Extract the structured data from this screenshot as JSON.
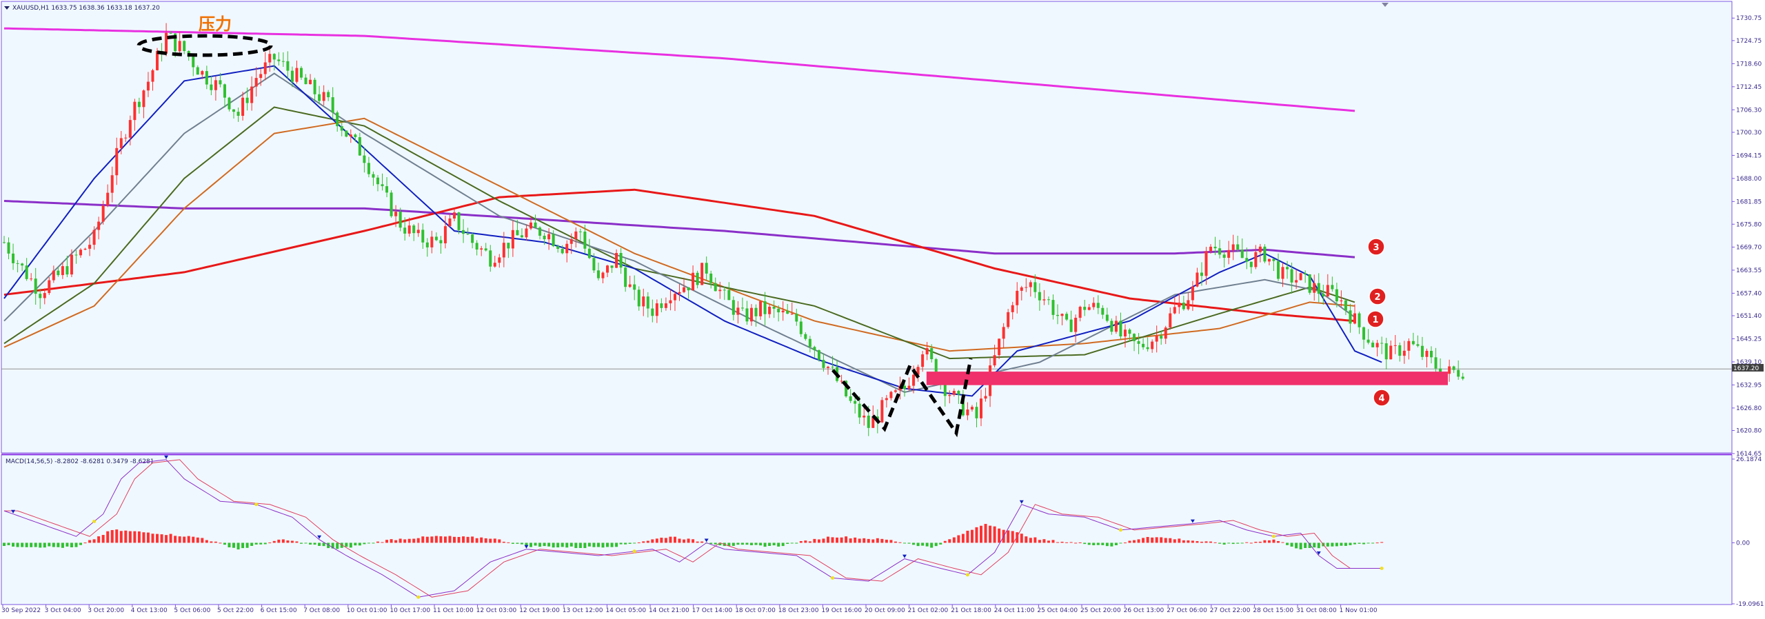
{
  "header": {
    "symbol_line": "XAUUSD,H1  1633.75 1638.36 1633.18 1637.20",
    "macd_line": "MACD(14,56,5) -8.2802 -8.6281 0.3479 -8.6281"
  },
  "annotations": {
    "pressure_label": "压力",
    "markers": [
      "1",
      "2",
      "3",
      "4"
    ]
  },
  "current_price_label": "1637.20",
  "colors": {
    "background": "#ffffff",
    "plot_bg": "#f0f8ff",
    "border": "#7a55e0",
    "magenta": "#e830e0",
    "purple": "#8a2fc8",
    "red_ma": "#e81818",
    "orange_ma": "#d06a20",
    "olive_ma": "#4a6a20",
    "gray_ma": "#708090",
    "blue_ma": "#1020c0",
    "up_candle": "#ff3030",
    "down_candle": "#30c030",
    "zone": "#f0306a",
    "badge": "#e02020"
  },
  "chart_data": [
    {
      "type": "candlestick",
      "symbol": "XAUUSD,H1",
      "y_ticks": [
        "1730.75",
        "1724.75",
        "1718.60",
        "1712.45",
        "1706.30",
        "1700.30",
        "1694.15",
        "1688.00",
        "1681.85",
        "1675.80",
        "1669.70",
        "1663.55",
        "1657.40",
        "1651.40",
        "1645.25",
        "1639.10",
        "1632.95",
        "1626.80",
        "1620.80",
        "1614.65"
      ],
      "ylim": [
        1614.65,
        1733.0
      ],
      "x_ticks": [
        "30 Sep 2022",
        "3 Oct 04:00",
        "3 Oct 20:00",
        "4 Oct 13:00",
        "5 Oct 06:00",
        "5 Oct 22:00",
        "6 Oct 15:00",
        "7 Oct 08:00",
        "10 Oct 01:00",
        "10 Oct 17:00",
        "11 Oct 10:00",
        "12 Oct 03:00",
        "12 Oct 19:00",
        "13 Oct 12:00",
        "14 Oct 05:00",
        "14 Oct 21:00",
        "17 Oct 14:00",
        "18 Oct 07:00",
        "18 Oct 23:00",
        "19 Oct 16:00",
        "20 Oct 09:00",
        "21 Oct 02:00",
        "21 Oct 18:00",
        "24 Oct 11:00",
        "25 Oct 04:00",
        "25 Oct 20:00",
        "26 Oct 13:00",
        "27 Oct 06:00",
        "27 Oct 22:00",
        "28 Oct 15:00",
        "31 Oct 08:00",
        "1 Nov 01:00"
      ],
      "current_price": 1637.2,
      "close_path": [
        [
          0,
          1671
        ],
        [
          4,
          1664
        ],
        [
          8,
          1658
        ],
        [
          12,
          1662
        ],
        [
          16,
          1667
        ],
        [
          20,
          1672
        ],
        [
          24,
          1690
        ],
        [
          28,
          1705
        ],
        [
          32,
          1714
        ],
        [
          36,
          1726
        ],
        [
          40,
          1722
        ],
        [
          44,
          1716
        ],
        [
          48,
          1712
        ],
        [
          52,
          1705
        ],
        [
          56,
          1715
        ],
        [
          60,
          1720
        ],
        [
          64,
          1716
        ],
        [
          68,
          1712
        ],
        [
          72,
          1708
        ],
        [
          76,
          1700
        ],
        [
          80,
          1694
        ],
        [
          84,
          1684
        ],
        [
          88,
          1676
        ],
        [
          92,
          1672
        ],
        [
          96,
          1671
        ],
        [
          100,
          1677
        ],
        [
          104,
          1671
        ],
        [
          108,
          1667
        ],
        [
          112,
          1671
        ],
        [
          116,
          1674
        ],
        [
          120,
          1674
        ],
        [
          124,
          1670
        ],
        [
          128,
          1674
        ],
        [
          132,
          1660
        ],
        [
          136,
          1667
        ],
        [
          140,
          1656
        ],
        [
          144,
          1653
        ],
        [
          148,
          1658
        ],
        [
          152,
          1660
        ],
        [
          156,
          1664
        ],
        [
          160,
          1656
        ],
        [
          164,
          1651
        ],
        [
          168,
          1653
        ],
        [
          172,
          1652
        ],
        [
          176,
          1650
        ],
        [
          180,
          1643
        ],
        [
          184,
          1636
        ],
        [
          188,
          1628
        ],
        [
          192,
          1622
        ],
        [
          196,
          1628
        ],
        [
          200,
          1632
        ],
        [
          204,
          1643
        ],
        [
          208,
          1634
        ],
        [
          212,
          1628
        ],
        [
          216,
          1624
        ],
        [
          220,
          1640
        ],
        [
          224,
          1656
        ],
        [
          228,
          1660
        ],
        [
          232,
          1655
        ],
        [
          236,
          1648
        ],
        [
          240,
          1654
        ],
        [
          244,
          1653
        ],
        [
          248,
          1646
        ],
        [
          252,
          1643
        ],
        [
          256,
          1646
        ],
        [
          260,
          1653
        ],
        [
          264,
          1658
        ],
        [
          268,
          1670
        ],
        [
          272,
          1669
        ],
        [
          276,
          1666
        ],
        [
          280,
          1668
        ],
        [
          284,
          1662
        ],
        [
          288,
          1661
        ],
        [
          292,
          1658
        ],
        [
          296,
          1657
        ],
        [
          300,
          1650
        ],
        [
          304,
          1644
        ],
        [
          308,
          1641
        ],
        [
          312,
          1644
        ],
        [
          316,
          1640
        ],
        [
          320,
          1636
        ],
        [
          324,
          1637
        ]
      ],
      "moving_averages": [
        {
          "color": "magenta",
          "path": [
            [
              0,
              1728
            ],
            [
              80,
              1726
            ],
            [
              160,
              1720
            ],
            [
              240,
              1712
            ],
            [
              300,
              1706
            ]
          ]
        },
        {
          "color": "purple",
          "path": [
            [
              0,
              1682
            ],
            [
              40,
              1680
            ],
            [
              80,
              1680
            ],
            [
              120,
              1677
            ],
            [
              160,
              1674
            ],
            [
              200,
              1670
            ],
            [
              220,
              1668
            ],
            [
              260,
              1668
            ],
            [
              280,
              1669
            ],
            [
              300,
              1667
            ]
          ]
        },
        {
          "color": "red_ma",
          "path": [
            [
              0,
              1657
            ],
            [
              40,
              1663
            ],
            [
              80,
              1674
            ],
            [
              110,
              1683
            ],
            [
              140,
              1685
            ],
            [
              180,
              1678
            ],
            [
              220,
              1664
            ],
            [
              250,
              1656
            ],
            [
              280,
              1652
            ],
            [
              300,
              1650
            ]
          ]
        },
        {
          "color": "orange_ma",
          "path": [
            [
              0,
              1643
            ],
            [
              20,
              1654
            ],
            [
              40,
              1680
            ],
            [
              60,
              1700
            ],
            [
              80,
              1704
            ],
            [
              110,
              1686
            ],
            [
              140,
              1668
            ],
            [
              180,
              1650
            ],
            [
              210,
              1642
            ],
            [
              240,
              1644
            ],
            [
              270,
              1648
            ],
            [
              290,
              1655
            ],
            [
              300,
              1654
            ]
          ]
        },
        {
          "color": "olive_ma",
          "path": [
            [
              0,
              1644
            ],
            [
              20,
              1660
            ],
            [
              40,
              1688
            ],
            [
              60,
              1707
            ],
            [
              80,
              1702
            ],
            [
              110,
              1682
            ],
            [
              140,
              1664
            ],
            [
              180,
              1654
            ],
            [
              210,
              1640
            ],
            [
              240,
              1641
            ],
            [
              270,
              1652
            ],
            [
              290,
              1659
            ],
            [
              300,
              1655
            ]
          ]
        },
        {
          "color": "gray_ma",
          "path": [
            [
              0,
              1650
            ],
            [
              20,
              1674
            ],
            [
              40,
              1700
            ],
            [
              60,
              1716
            ],
            [
              80,
              1700
            ],
            [
              110,
              1678
            ],
            [
              140,
              1666
            ],
            [
              170,
              1648
            ],
            [
              200,
              1631
            ],
            [
              230,
              1639
            ],
            [
              260,
              1657
            ],
            [
              280,
              1661
            ],
            [
              292,
              1658
            ],
            [
              300,
              1651
            ]
          ]
        },
        {
          "color": "blue_ma",
          "path": [
            [
              0,
              1656
            ],
            [
              20,
              1688
            ],
            [
              40,
              1714
            ],
            [
              60,
              1718
            ],
            [
              80,
              1696
            ],
            [
              100,
              1674
            ],
            [
              120,
              1671
            ],
            [
              140,
              1664
            ],
            [
              160,
              1650
            ],
            [
              180,
              1640
            ],
            [
              200,
              1632
            ],
            [
              215,
              1630
            ],
            [
              225,
              1642
            ],
            [
              250,
              1650
            ],
            [
              270,
              1663
            ],
            [
              280,
              1668
            ],
            [
              290,
              1662
            ],
            [
              300,
              1642
            ],
            [
              306,
              1639
            ]
          ]
        }
      ],
      "zone": {
        "from": 1632.9,
        "to": 1636.5,
        "start_bar": 211
      }
    },
    {
      "type": "macd",
      "title": "MACD(14,56,5) -8.2802 -8.6281 0.3479 -8.6281",
      "y_ticks": [
        "26.1874",
        "0.00",
        "-19.0961"
      ],
      "ylim": [
        -19.0961,
        26.1874
      ],
      "main_path": [
        [
          0,
          10
        ],
        [
          8,
          6
        ],
        [
          16,
          2
        ],
        [
          22,
          9
        ],
        [
          26,
          20
        ],
        [
          30,
          25
        ],
        [
          36,
          26
        ],
        [
          40,
          20
        ],
        [
          48,
          13
        ],
        [
          56,
          12
        ],
        [
          64,
          8
        ],
        [
          70,
          1
        ],
        [
          76,
          -4
        ],
        [
          84,
          -10
        ],
        [
          92,
          -17
        ],
        [
          100,
          -15
        ],
        [
          108,
          -6
        ],
        [
          116,
          -2
        ],
        [
          124,
          -3
        ],
        [
          132,
          -4
        ],
        [
          138,
          -3
        ],
        [
          144,
          -2
        ],
        [
          150,
          -6
        ],
        [
          156,
          0
        ],
        [
          160,
          -2
        ],
        [
          168,
          -3
        ],
        [
          176,
          -4
        ],
        [
          184,
          -11
        ],
        [
          192,
          -12
        ],
        [
          200,
          -5
        ],
        [
          208,
          -8
        ],
        [
          214,
          -10
        ],
        [
          220,
          -3
        ],
        [
          226,
          12
        ],
        [
          232,
          9
        ],
        [
          240,
          8
        ],
        [
          248,
          4
        ],
        [
          256,
          5
        ],
        [
          264,
          6
        ],
        [
          270,
          7
        ],
        [
          276,
          4
        ],
        [
          282,
          2
        ],
        [
          288,
          3
        ],
        [
          292,
          -4
        ],
        [
          296,
          -8
        ],
        [
          306,
          -8
        ]
      ],
      "histogram": [
        [
          0,
          -1
        ],
        [
          16,
          -1.5
        ],
        [
          24,
          4
        ],
        [
          34,
          3
        ],
        [
          44,
          1.5
        ],
        [
          52,
          -2
        ],
        [
          62,
          1
        ],
        [
          74,
          -2
        ],
        [
          86,
          1
        ],
        [
          96,
          2
        ],
        [
          108,
          1.5
        ],
        [
          116,
          -1
        ],
        [
          128,
          -1.5
        ],
        [
          136,
          -1
        ],
        [
          148,
          2
        ],
        [
          160,
          -0.8
        ],
        [
          172,
          -1
        ],
        [
          184,
          2
        ],
        [
          196,
          1
        ],
        [
          206,
          -1.5
        ],
        [
          218,
          6
        ],
        [
          230,
          1
        ],
        [
          246,
          -1
        ],
        [
          254,
          2
        ],
        [
          262,
          1
        ],
        [
          272,
          -0.5
        ],
        [
          282,
          1
        ],
        [
          288,
          -2
        ],
        [
          296,
          -1
        ],
        [
          306,
          0.3
        ]
      ]
    }
  ]
}
